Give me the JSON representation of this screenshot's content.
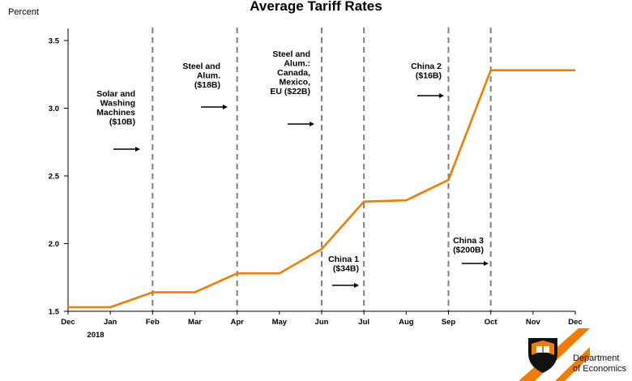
{
  "chart_data": {
    "type": "line",
    "title": "Average Tariff Rates",
    "ylabel": "Percent",
    "xlabel": "",
    "ylim": [
      1.5,
      3.5
    ],
    "yticks": [
      "1.5",
      "2.0",
      "2.5",
      "3.0",
      "3.5"
    ],
    "categories": [
      "Dec",
      "Jan",
      "Feb",
      "Mar",
      "Apr",
      "May",
      "Jun",
      "Jul",
      "Aug",
      "Sep",
      "Oct",
      "Nov",
      "Dec"
    ],
    "year_label": "2018",
    "series": [
      {
        "color": "#f07d00",
        "points": [
          [
            0.0,
            1.53
          ],
          [
            1.0,
            1.53
          ],
          [
            2.0,
            1.64
          ],
          [
            3.0,
            1.64
          ],
          [
            4.0,
            1.78
          ],
          [
            5.0,
            1.78
          ],
          [
            6.0,
            1.96
          ],
          [
            7.0,
            2.31
          ],
          [
            8.0,
            2.32
          ],
          [
            9.0,
            2.47
          ],
          [
            10.0,
            3.28
          ],
          [
            11.0,
            3.28
          ],
          [
            12.0,
            3.28
          ]
        ]
      }
    ],
    "event_lines": [
      2,
      4,
      6,
      7,
      9,
      10
    ],
    "annotations": [
      {
        "lines": [
          "Solar and",
          "Washing",
          "Machines",
          "($10B)"
        ],
        "position": "left of Feb line, upper"
      },
      {
        "lines": [
          "Steel and",
          "Alum.",
          "($18B)"
        ],
        "position": "left of Apr line, top"
      },
      {
        "lines": [
          "Steel and",
          "Alum.:",
          "Canada,",
          "Mexico,",
          "EU ($22B)"
        ],
        "position": "left of Jun line, top"
      },
      {
        "lines": [
          "China 1",
          "($34B)"
        ],
        "position": "left of Jul line, lower"
      },
      {
        "lines": [
          "China 2",
          "($16B)"
        ],
        "position": "left of Sep line, top"
      },
      {
        "lines": [
          "China 3",
          "($200B)"
        ],
        "position": "left of Oct line, lower"
      }
    ],
    "grid": false,
    "legend": "none"
  },
  "branding": {
    "line1": "Department",
    "line2": "of Economics"
  },
  "colors": {
    "series": "#f07d00",
    "event_line": "#808080",
    "logo_accent": "#f07d00"
  }
}
